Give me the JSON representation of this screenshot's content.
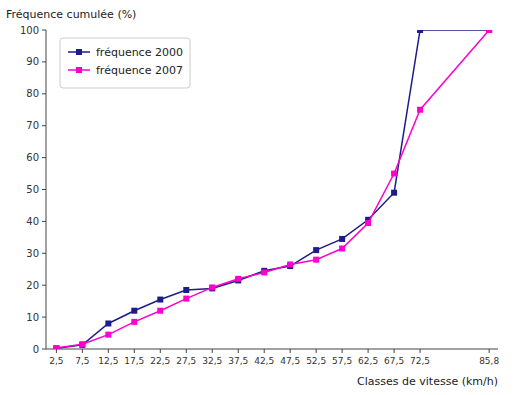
{
  "chart_data": {
    "type": "line",
    "x_label": "Classes de vitesse (km/h)",
    "y_label": "Fréquence cumulée (%)",
    "x": [
      2.5,
      7.5,
      12.5,
      17.5,
      22.5,
      27.5,
      32.5,
      37.5,
      42.5,
      47.5,
      52.5,
      57.5,
      62.5,
      67.5,
      72.5,
      85.8
    ],
    "series": [
      {
        "name": "fréquence 2000",
        "color": "#1c1c8a",
        "marker": "square",
        "values": [
          0.2,
          1.3,
          8.0,
          12.0,
          15.5,
          18.5,
          19.0,
          21.5,
          24.5,
          26.0,
          31.0,
          34.5,
          40.5,
          49.0,
          100.0,
          100.0
        ]
      },
      {
        "name": "fréquence 2007",
        "color": "#ff00cc",
        "marker": "square",
        "values": [
          0.3,
          1.5,
          4.5,
          8.5,
          12.0,
          15.8,
          19.3,
          22.0,
          24.0,
          26.5,
          28.0,
          31.5,
          39.5,
          55.0,
          75.0,
          100.0
        ]
      }
    ],
    "xlim": [
      0.5,
      87.5
    ],
    "xticks": [
      {
        "value": 2.5,
        "label": "2,5"
      },
      {
        "value": 7.5,
        "label": "7,5"
      },
      {
        "value": 12.5,
        "label": "12,5"
      },
      {
        "value": 17.5,
        "label": "17,5"
      },
      {
        "value": 22.5,
        "label": "22,5"
      },
      {
        "value": 27.5,
        "label": "27,5"
      },
      {
        "value": 32.5,
        "label": "32,5"
      },
      {
        "value": 37.5,
        "label": "37,5"
      },
      {
        "value": 42.5,
        "label": "42,5"
      },
      {
        "value": 47.5,
        "label": "47,5"
      },
      {
        "value": 52.5,
        "label": "52,5"
      },
      {
        "value": 57.5,
        "label": "57,5"
      },
      {
        "value": 62.5,
        "label": "62,5"
      },
      {
        "value": 67.5,
        "label": "67,5"
      },
      {
        "value": 72.5,
        "label": "72,5"
      },
      {
        "value": 85.8,
        "label": "85,8"
      }
    ],
    "ylim": [
      0,
      100
    ],
    "yticks": [
      0,
      10,
      20,
      30,
      40,
      50,
      60,
      70,
      80,
      90,
      100
    ],
    "grid": false,
    "legend": "upper left"
  }
}
